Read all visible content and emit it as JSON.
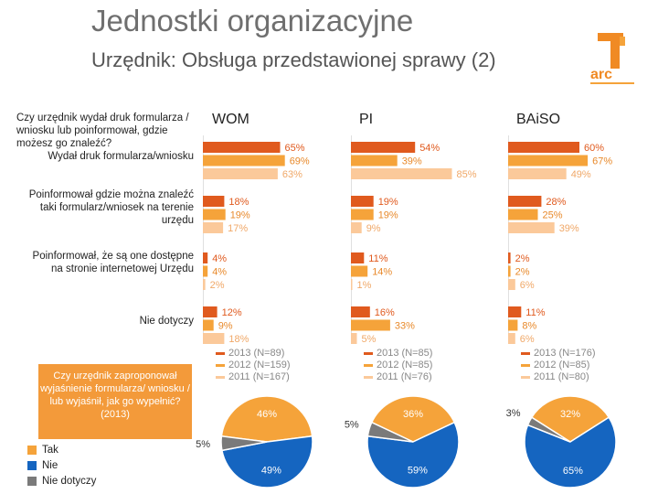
{
  "title": "Jednostki organizacyjne",
  "subtitle": "Urzędnik: Obsługa przedstawionej sprawy (2)",
  "question_bars": "Czy urzędnik wydał druk formularza / wniosku lub poinformował, gdzie możesz go znaleźć?",
  "question_pies": "Czy urzędnik zaproponował wyjaśnienie formularza/ wniosku / lub wyjaśnił, jak go wypełnić? (2013)",
  "colors": {
    "2013": "#e05a1e",
    "2012": "#f5a33a",
    "2011": "#fbc99a",
    "tak": "#f5a33a",
    "nie": "#1565c0",
    "nie_dotyczy": "#7a7a7a"
  },
  "pie_legend": [
    {
      "label": "Tak",
      "color": "#f5a33a"
    },
    {
      "label": "Nie",
      "color": "#1565c0"
    },
    {
      "label": "Nie dotyczy",
      "color": "#7a7a7a"
    }
  ],
  "chart_data": [
    {
      "type": "bar",
      "orientation": "horizontal",
      "categories": [
        "Wydał druk formularza/wniosku",
        "Poinformował gdzie można znaleźć taki formularz/wniosek na terenie urzędu",
        "Poinformował, że są one dostępne na stronie internetowej Urzędu",
        "Nie dotyczy"
      ],
      "panels": [
        {
          "name": "WOM",
          "series": [
            {
              "name": "2013 (N=89)",
              "values": [
                65,
                18,
                4,
                12
              ]
            },
            {
              "name": "2012 (N=159)",
              "values": [
                69,
                19,
                4,
                9
              ]
            },
            {
              "name": "2011 (N=167)",
              "values": [
                63,
                17,
                2,
                18
              ]
            }
          ]
        },
        {
          "name": "PI",
          "series": [
            {
              "name": "2013 (N=85)",
              "values": [
                54,
                19,
                11,
                16
              ]
            },
            {
              "name": "2012 (N=85)",
              "values": [
                39,
                19,
                14,
                33
              ]
            },
            {
              "name": "2011 (N=76)",
              "values": [
                85,
                9,
                1,
                5
              ]
            }
          ]
        },
        {
          "name": "BAiSO",
          "series": [
            {
              "name": "2013 (N=176)",
              "values": [
                60,
                28,
                2,
                11
              ]
            },
            {
              "name": "2012 (N=85)",
              "values": [
                67,
                25,
                2,
                8
              ]
            },
            {
              "name": "2011 (N=80)",
              "values": [
                49,
                39,
                6,
                6
              ]
            }
          ]
        }
      ],
      "unit": "%"
    },
    {
      "type": "pie",
      "pies": [
        {
          "panel": "WOM",
          "slices": [
            {
              "label": "Tak",
              "value": 46
            },
            {
              "label": "Nie",
              "value": 49
            },
            {
              "label": "Nie dotyczy",
              "value": 5
            }
          ]
        },
        {
          "panel": "PI",
          "slices": [
            {
              "label": "Tak",
              "value": 36
            },
            {
              "label": "Nie",
              "value": 59
            },
            {
              "label": "Nie dotyczy",
              "value": 5
            }
          ]
        },
        {
          "panel": "BAiSO",
          "slices": [
            {
              "label": "Tak",
              "value": 32
            },
            {
              "label": "Nie",
              "value": 65
            },
            {
              "label": "Nie dotyczy",
              "value": 3
            }
          ]
        }
      ],
      "unit": "%"
    }
  ]
}
